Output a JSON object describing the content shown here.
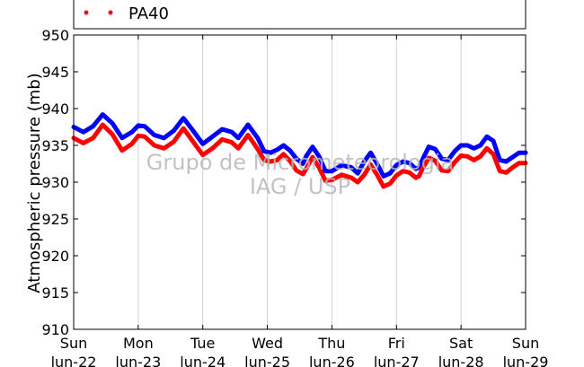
{
  "chart_data": {
    "type": "line",
    "title": "",
    "ylabel": "Atmospheric pressure (mb)",
    "xlabel": "",
    "ylim": [
      910,
      950
    ],
    "yticks": [
      910,
      915,
      920,
      925,
      930,
      935,
      940,
      945,
      950
    ],
    "xlim": [
      0,
      7
    ],
    "grid": true,
    "x_ticks": [
      {
        "day": "Sun",
        "date": "lun-22"
      },
      {
        "day": "Mon",
        "date": "lun-23"
      },
      {
        "day": "Tue",
        "date": "lun-24"
      },
      {
        "day": "Wed",
        "date": "lun-25"
      },
      {
        "day": "Thu",
        "date": "lun-26"
      },
      {
        "day": "Fri",
        "date": "lun-27"
      },
      {
        "day": "Sat",
        "date": "lun-28"
      },
      {
        "day": "Sun",
        "date": "lun-29"
      }
    ],
    "x_unit": "days from lun-22",
    "legend": {
      "placement": "top-left"
    },
    "series": [
      {
        "name": "",
        "color": "#0000ff",
        "points": [
          [
            0,
            937.5
          ],
          [
            0.15,
            936.8
          ],
          [
            0.3,
            937.6
          ],
          [
            0.45,
            939.2
          ],
          [
            0.6,
            938.0
          ],
          [
            0.75,
            936.0
          ],
          [
            0.9,
            936.8
          ],
          [
            1.0,
            937.7
          ],
          [
            1.1,
            937.6
          ],
          [
            1.25,
            936.4
          ],
          [
            1.4,
            936.0
          ],
          [
            1.55,
            937.0
          ],
          [
            1.7,
            938.7
          ],
          [
            1.85,
            937.0
          ],
          [
            2.0,
            935.2
          ],
          [
            2.15,
            936.2
          ],
          [
            2.3,
            937.2
          ],
          [
            2.45,
            936.8
          ],
          [
            2.55,
            936.0
          ],
          [
            2.7,
            937.8
          ],
          [
            2.85,
            936.0
          ],
          [
            2.95,
            934.2
          ],
          [
            3.05,
            934.0
          ],
          [
            3.15,
            934.4
          ],
          [
            3.25,
            935.0
          ],
          [
            3.35,
            934.3
          ],
          [
            3.45,
            933.2
          ],
          [
            3.55,
            932.5
          ],
          [
            3.6,
            933.5
          ],
          [
            3.7,
            934.8
          ],
          [
            3.8,
            933.5
          ],
          [
            3.9,
            931.5
          ],
          [
            4.0,
            931.5
          ],
          [
            4.15,
            932.3
          ],
          [
            4.3,
            932.0
          ],
          [
            4.4,
            931.2
          ],
          [
            4.5,
            932.8
          ],
          [
            4.6,
            934.0
          ],
          [
            4.7,
            932.5
          ],
          [
            4.8,
            930.8
          ],
          [
            4.9,
            931.2
          ],
          [
            5.0,
            932.3
          ],
          [
            5.1,
            932.8
          ],
          [
            5.2,
            932.6
          ],
          [
            5.3,
            931.8
          ],
          [
            5.35,
            932.0
          ],
          [
            5.4,
            933.0
          ],
          [
            5.5,
            934.8
          ],
          [
            5.6,
            934.5
          ],
          [
            5.7,
            933.2
          ],
          [
            5.8,
            933.0
          ],
          [
            5.9,
            934.2
          ],
          [
            6.0,
            935.0
          ],
          [
            6.1,
            935.0
          ],
          [
            6.2,
            934.6
          ],
          [
            6.3,
            935.0
          ],
          [
            6.4,
            936.2
          ],
          [
            6.5,
            935.6
          ],
          [
            6.6,
            933.0
          ],
          [
            6.7,
            932.8
          ],
          [
            6.8,
            933.4
          ],
          [
            6.9,
            934.0
          ],
          [
            7.0,
            934.0
          ]
        ]
      },
      {
        "name": "PA40",
        "color": "#ff0000",
        "points": [
          [
            0,
            936.0
          ],
          [
            0.15,
            935.3
          ],
          [
            0.3,
            936.0
          ],
          [
            0.45,
            937.8
          ],
          [
            0.6,
            936.5
          ],
          [
            0.75,
            934.3
          ],
          [
            0.9,
            935.2
          ],
          [
            1.0,
            936.3
          ],
          [
            1.1,
            936.2
          ],
          [
            1.25,
            935.0
          ],
          [
            1.4,
            934.6
          ],
          [
            1.55,
            935.5
          ],
          [
            1.7,
            937.3
          ],
          [
            1.85,
            935.5
          ],
          [
            2.0,
            933.7
          ],
          [
            2.15,
            934.6
          ],
          [
            2.3,
            935.8
          ],
          [
            2.45,
            935.4
          ],
          [
            2.55,
            934.6
          ],
          [
            2.7,
            936.4
          ],
          [
            2.85,
            934.5
          ],
          [
            2.95,
            933.0
          ],
          [
            3.05,
            932.8
          ],
          [
            3.15,
            933.0
          ],
          [
            3.25,
            933.8
          ],
          [
            3.35,
            932.9
          ],
          [
            3.45,
            931.6
          ],
          [
            3.55,
            931.1
          ],
          [
            3.6,
            931.8
          ],
          [
            3.7,
            933.4
          ],
          [
            3.8,
            932.0
          ],
          [
            3.9,
            930.2
          ],
          [
            4.0,
            930.3
          ],
          [
            4.15,
            931.0
          ],
          [
            4.3,
            930.6
          ],
          [
            4.4,
            930.0
          ],
          [
            4.5,
            931.0
          ],
          [
            4.6,
            932.4
          ],
          [
            4.7,
            931.0
          ],
          [
            4.8,
            929.4
          ],
          [
            4.9,
            929.8
          ],
          [
            5.0,
            930.9
          ],
          [
            5.1,
            931.5
          ],
          [
            5.2,
            931.3
          ],
          [
            5.3,
            930.6
          ],
          [
            5.35,
            930.8
          ],
          [
            5.4,
            931.8
          ],
          [
            5.5,
            933.3
          ],
          [
            5.6,
            932.9
          ],
          [
            5.7,
            931.6
          ],
          [
            5.8,
            931.5
          ],
          [
            5.9,
            932.7
          ],
          [
            6.0,
            933.6
          ],
          [
            6.1,
            933.5
          ],
          [
            6.2,
            933.0
          ],
          [
            6.3,
            933.5
          ],
          [
            6.4,
            934.6
          ],
          [
            6.5,
            933.8
          ],
          [
            6.6,
            931.5
          ],
          [
            6.7,
            931.3
          ],
          [
            6.8,
            932.0
          ],
          [
            6.9,
            932.6
          ],
          [
            7.0,
            932.6
          ]
        ]
      }
    ]
  },
  "watermark": {
    "line1": "Grupo de Micrometeorologia",
    "line2": "IAG / USP"
  }
}
